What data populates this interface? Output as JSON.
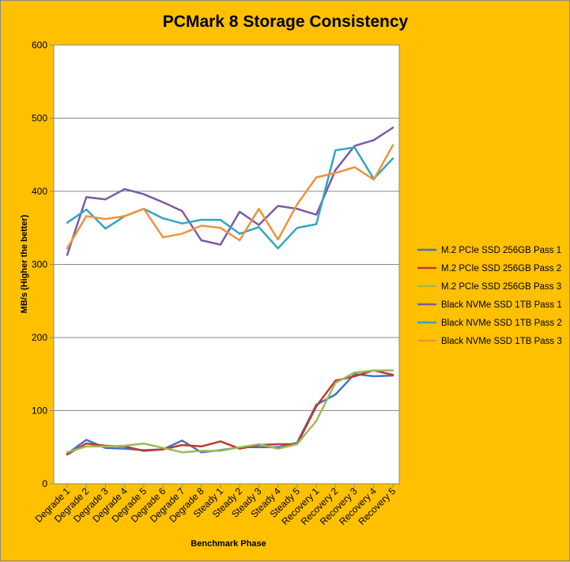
{
  "chart_data": {
    "type": "line",
    "title": "PCMark 8 Storage Consistency",
    "xlabel": "Benchmark Phase",
    "ylabel": "MB/s (Higher the better)",
    "ylim": [
      0,
      600
    ],
    "yticks": [
      0,
      100,
      200,
      300,
      400,
      500,
      600
    ],
    "grid": "horizontal",
    "legend_position": "right",
    "categories": [
      "Degrade 1",
      "Degrade 2",
      "Degrade 3",
      "Degrade 4",
      "Degrade 5",
      "Degrade 6",
      "Degrade 7",
      "Degrade 8",
      "Steady 1",
      "Steady 2",
      "Steady 3",
      "Steady 4",
      "Steady 5",
      "Recovery 1",
      "Recovery 2",
      "Recovery 3",
      "Recovery 4",
      "Recovery 5"
    ],
    "series": [
      {
        "name": "M.2 PCIe SSD 256GB Pass 1",
        "color": "#4472C4",
        "values": [
          41,
          60,
          49,
          48,
          46,
          47,
          59,
          43,
          46,
          50,
          50,
          50,
          56,
          108,
          122,
          150,
          147,
          148
        ]
      },
      {
        "name": "M.2 PCIe SSD 256GB Pass 2",
        "color": "#C0392B",
        "values": [
          40,
          55,
          52,
          51,
          45,
          47,
          53,
          51,
          58,
          48,
          53,
          54,
          54,
          106,
          141,
          147,
          155,
          149
        ]
      },
      {
        "name": "M.2 PCIe SSD 256GB Pass 3",
        "color": "#9BBB59",
        "values": [
          43,
          51,
          51,
          52,
          55,
          49,
          43,
          45,
          45,
          50,
          54,
          48,
          54,
          86,
          138,
          152,
          155,
          155
        ]
      },
      {
        "name": "Black NVMe SSD 1TB Pass 1",
        "color": "#7B5AA6",
        "values": [
          313,
          392,
          389,
          403,
          396,
          385,
          373,
          333,
          327,
          372,
          354,
          380,
          376,
          368,
          429,
          462,
          470,
          487
        ]
      },
      {
        "name": "Black NVMe SSD 1TB Pass 2",
        "color": "#31A6BF",
        "values": [
          357,
          375,
          349,
          366,
          376,
          363,
          356,
          361,
          361,
          342,
          351,
          322,
          350,
          355,
          456,
          460,
          417,
          445
        ]
      },
      {
        "name": "Black NVMe SSD 1TB Pass 3",
        "color": "#F0923C",
        "values": [
          322,
          366,
          362,
          366,
          376,
          337,
          342,
          353,
          350,
          333,
          376,
          334,
          382,
          419,
          425,
          433,
          416,
          463
        ]
      }
    ]
  }
}
